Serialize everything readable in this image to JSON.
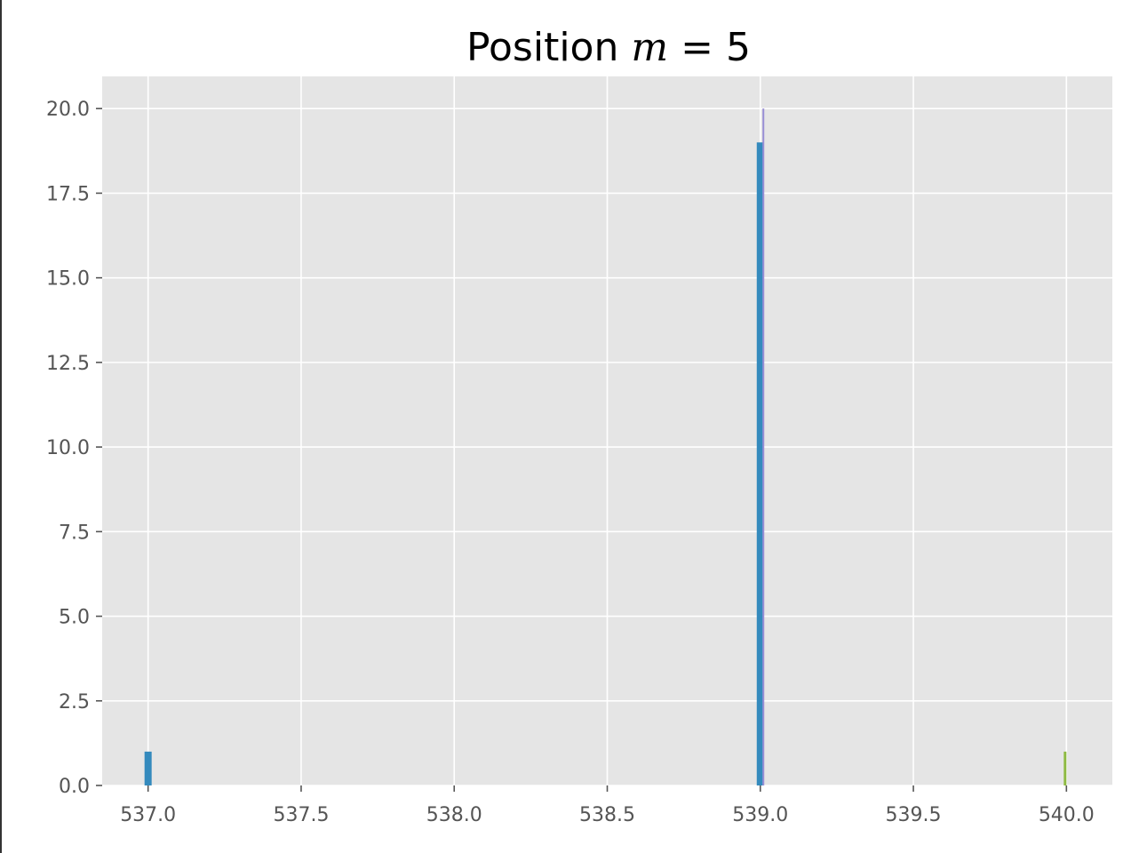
{
  "chart_data": {
    "type": "bar",
    "title_prefix": "Position ",
    "title_variable": "m",
    "title_equals": " = ",
    "title_value": "5",
    "xlabel": "",
    "ylabel": "",
    "xlim": [
      536.85,
      540.15
    ],
    "ylim": [
      0,
      20.95
    ],
    "xticks": [
      "537.0",
      "537.5",
      "538.0",
      "538.5",
      "539.0",
      "539.5",
      "540.0"
    ],
    "xtick_values": [
      537.0,
      537.5,
      538.0,
      538.5,
      539.0,
      539.5,
      540.0
    ],
    "yticks": [
      "0.0",
      "2.5",
      "5.0",
      "7.5",
      "10.0",
      "12.5",
      "15.0",
      "17.5",
      "20.0"
    ],
    "ytick_values": [
      0,
      2.5,
      5.0,
      7.5,
      10.0,
      12.5,
      15.0,
      17.5,
      20.0
    ],
    "grid": true,
    "colors": {
      "background": "#e5e5e5",
      "grid": "#ffffff",
      "text": "#555555"
    },
    "series": [
      {
        "color": "#348abd",
        "bars": [
          {
            "x": 537.0,
            "value": 1
          },
          {
            "x": 539.0,
            "value": 19
          }
        ]
      },
      {
        "color": "#988ed5",
        "bars": [
          {
            "x": 539.01,
            "value": 20
          }
        ]
      },
      {
        "color": "#8eba42",
        "bars": [
          {
            "x": 540.0,
            "value": 1
          }
        ]
      }
    ]
  }
}
